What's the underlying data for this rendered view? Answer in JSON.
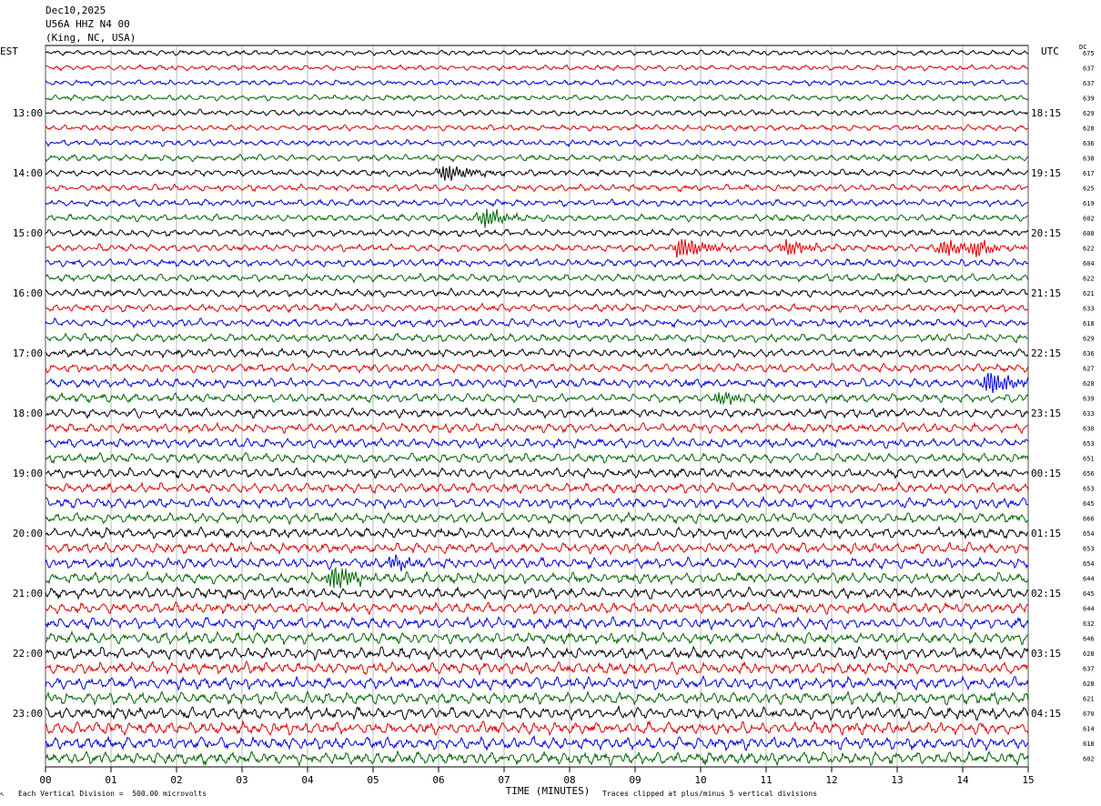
{
  "header": {
    "date": "Dec10,2025",
    "station": "U56A HHZ N4 00",
    "location": "(King, NC, USA)"
  },
  "labels": {
    "left_tz": "EST",
    "right_tz": "UTC",
    "dc": "DC"
  },
  "footer": {
    "scale": "Each Vertical Division =  500.00 microvolts",
    "clip": "Traces clipped at plus/minus 5 vertical divisions"
  },
  "colors": {
    "trace_cycle": [
      "#000000",
      "#dd0000",
      "#0000dd",
      "#006600"
    ],
    "grid": "#000000",
    "background": "#ffffff"
  },
  "chart_data": {
    "type": "line",
    "subtype": "seismogram helicorder",
    "xlabel": "TIME (MINUTES)",
    "x_ticks": [
      "00",
      "01",
      "02",
      "03",
      "04",
      "05",
      "06",
      "07",
      "08",
      "09",
      "10",
      "11",
      "12",
      "13",
      "14",
      "15"
    ],
    "xlim": [
      0,
      15
    ],
    "minutes_per_line": 15,
    "left_hour_labels": [
      "13:00",
      "14:00",
      "15:00",
      "16:00",
      "17:00",
      "18:00",
      "19:00",
      "20:00",
      "21:00",
      "22:00",
      "23:00"
    ],
    "right_hour_labels": [
      "18:15",
      "19:15",
      "20:15",
      "21:15",
      "22:15",
      "23:15",
      "00:15",
      "01:15",
      "02:15",
      "03:15",
      "04:15"
    ],
    "dc_offsets": [
      675,
      637,
      637,
      639,
      629,
      628,
      636,
      638,
      617,
      625,
      619,
      602,
      608,
      622,
      604,
      622,
      621,
      633,
      618,
      629,
      636,
      627,
      628,
      639,
      633,
      630,
      653,
      651,
      656,
      653,
      645,
      666,
      654,
      653,
      654,
      644,
      645,
      644,
      632,
      646,
      628,
      637,
      628,
      621,
      670,
      614,
      618,
      602
    ],
    "lines": 48,
    "first_line_hour_index": -1,
    "events": [
      {
        "line": 8,
        "minute": 6.1,
        "amplitude": "medium"
      },
      {
        "line": 11,
        "minute": 6.7,
        "amplitude": "medium"
      },
      {
        "line": 13,
        "minute": 9.7,
        "amplitude": "large"
      },
      {
        "line": 13,
        "minute": 11.3,
        "amplitude": "medium"
      },
      {
        "line": 13,
        "minute": 13.7,
        "amplitude": "medium"
      },
      {
        "line": 13,
        "minute": 14.2,
        "amplitude": "small"
      },
      {
        "line": 22,
        "minute": 14.4,
        "amplitude": "large"
      },
      {
        "line": 23,
        "minute": 10.3,
        "amplitude": "small"
      },
      {
        "line": 34,
        "minute": 5.3,
        "amplitude": "small"
      },
      {
        "line": 35,
        "minute": 4.4,
        "amplitude": "large"
      }
    ]
  }
}
